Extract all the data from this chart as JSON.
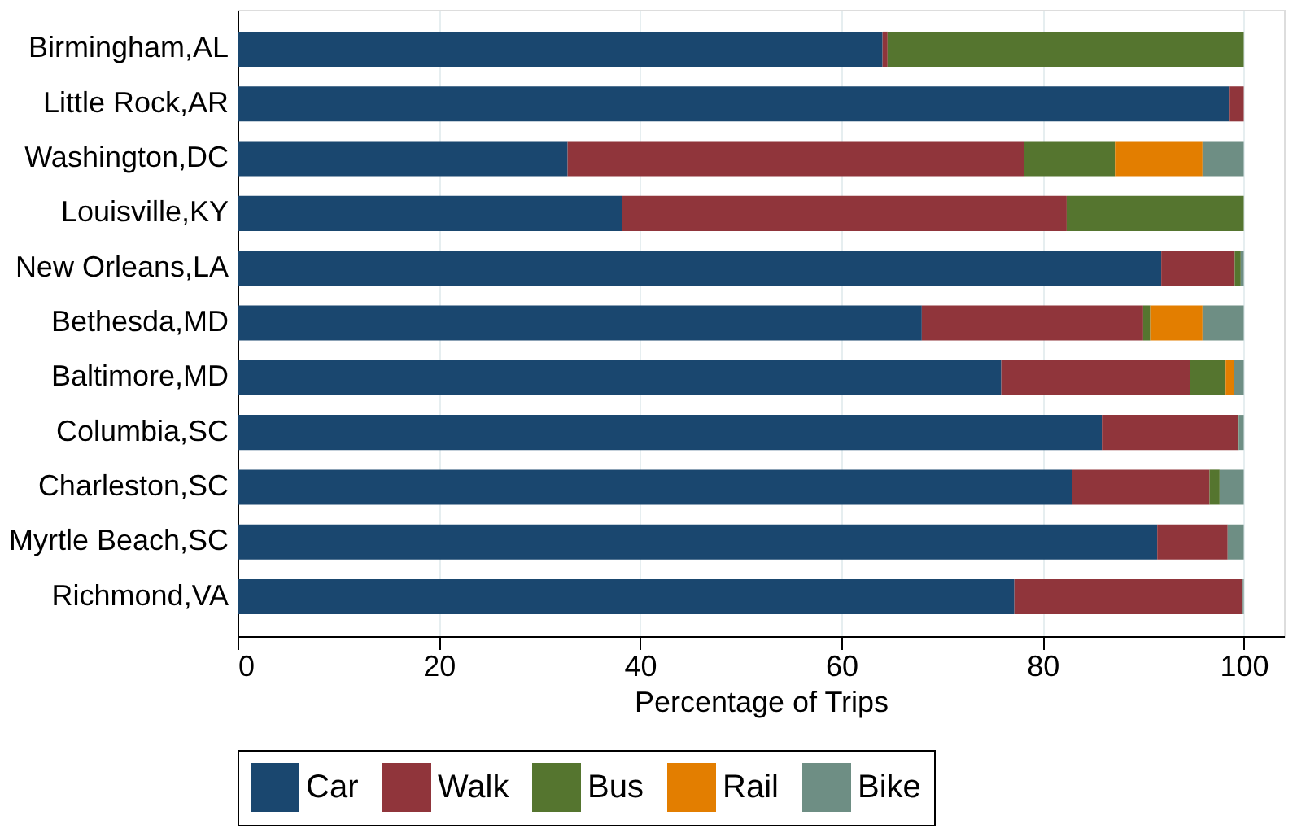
{
  "chart_data": {
    "type": "bar",
    "orientation": "horizontal",
    "stacked": true,
    "xlabel": "Percentage of Trips",
    "categories": [
      "Birmingham,AL",
      "Little Rock,AR",
      "Washington,DC",
      "Louisville,KY",
      "New Orleans,LA",
      "Bethesda,MD",
      "Baltimore,MD",
      "Columbia,SC",
      "Charleston,SC",
      "Myrtle Beach,SC",
      "Richmond,VA"
    ],
    "series": [
      {
        "name": "Car",
        "color": "#1a476f",
        "values": [
          64.1,
          98.6,
          32.8,
          38.2,
          91.8,
          68.0,
          75.9,
          85.9,
          82.9,
          91.4,
          77.2
        ]
      },
      {
        "name": "Walk",
        "color": "#90353b",
        "values": [
          0.5,
          1.4,
          45.4,
          44.2,
          7.3,
          22.0,
          18.8,
          13.5,
          13.7,
          7.0,
          22.7
        ]
      },
      {
        "name": "Bus",
        "color": "#55752f",
        "values": [
          35.4,
          0,
          9.0,
          17.6,
          0.6,
          0.7,
          3.5,
          0.1,
          1.0,
          0,
          0
        ]
      },
      {
        "name": "Rail",
        "color": "#e37e00",
        "values": [
          0,
          0,
          8.7,
          0,
          0,
          5.2,
          0.8,
          0,
          0,
          0,
          0
        ]
      },
      {
        "name": "Bike",
        "color": "#6e8e84",
        "values": [
          0,
          0,
          4.1,
          0,
          0.3,
          4.1,
          1.0,
          0.5,
          2.4,
          1.6,
          0.1
        ]
      }
    ],
    "xlim": [
      0,
      104
    ],
    "xticks": [
      0,
      20,
      40,
      60,
      80,
      100
    ],
    "grid": "x",
    "legend": "bottom"
  }
}
